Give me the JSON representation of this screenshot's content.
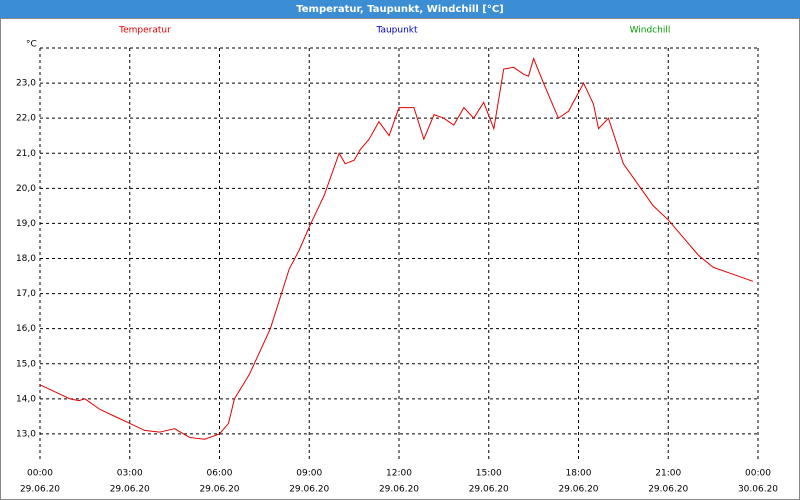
{
  "chart_data": {
    "type": "line",
    "title": "Temperatur, Taupunkt, Windchill [°C]",
    "y_label": "°C",
    "x": [
      0,
      0.5,
      1,
      1.3,
      1.5,
      2,
      2.5,
      3,
      3.5,
      4,
      4.5,
      5,
      5.5,
      6,
      6.3,
      6.5,
      7,
      7.7,
      8.33,
      8.67,
      9,
      9.5,
      10,
      10.2,
      10.5,
      10.7,
      11,
      11.33,
      11.67,
      12,
      12.5,
      12.83,
      13.17,
      13.5,
      13.83,
      14.17,
      14.5,
      14.83,
      15.17,
      15.5,
      15.83,
      16.17,
      16.33,
      16.5,
      16.83,
      17.33,
      17.67,
      18.17,
      18.5,
      18.67,
      19,
      19.5,
      20,
      20.5,
      21,
      21.5,
      22,
      22.5,
      23,
      23.5,
      23.83
    ],
    "series": [
      {
        "name": "Temperatur",
        "color": "#e00000",
        "values": [
          14.4,
          14.2,
          14.0,
          13.95,
          14.0,
          13.7,
          13.5,
          13.3,
          13.1,
          13.05,
          13.15,
          12.9,
          12.85,
          13.0,
          13.3,
          14.0,
          14.7,
          16.0,
          17.7,
          18.25,
          18.9,
          19.8,
          21.0,
          20.7,
          20.8,
          21.1,
          21.4,
          21.9,
          21.5,
          22.3,
          22.3,
          21.4,
          22.1,
          22.0,
          21.8,
          22.3,
          22.0,
          22.45,
          21.7,
          23.4,
          23.45,
          23.25,
          23.2,
          23.7,
          23.0,
          22.0,
          22.2,
          23.0,
          22.4,
          21.7,
          22.0,
          20.7,
          20.1,
          19.5,
          19.1,
          18.6,
          18.1,
          17.75,
          17.6,
          17.45,
          17.35
        ]
      }
    ],
    "legend": [
      {
        "name": "Temperatur",
        "color": "#e00000"
      },
      {
        "name": "Taupunkt",
        "color": "#0000c0"
      },
      {
        "name": "Windchill",
        "color": "#00a000"
      }
    ],
    "xlim": [
      0,
      24
    ],
    "ylim": [
      12.2,
      24.0
    ],
    "xticks": [
      {
        "value": 0,
        "label": "00:00",
        "date": "29.06.20"
      },
      {
        "value": 3,
        "label": "03:00",
        "date": "29.06.20"
      },
      {
        "value": 6,
        "label": "06:00",
        "date": "29.06.20"
      },
      {
        "value": 9,
        "label": "09:00",
        "date": "29.06.20"
      },
      {
        "value": 12,
        "label": "12:00",
        "date": "29.06.20"
      },
      {
        "value": 15,
        "label": "15:00",
        "date": "29.06.20"
      },
      {
        "value": 18,
        "label": "18:00",
        "date": "29.06.20"
      },
      {
        "value": 21,
        "label": "21:00",
        "date": "29.06.20"
      },
      {
        "value": 24,
        "label": "00:00",
        "date": "30.06.20"
      }
    ],
    "yticks": [
      {
        "value": 13,
        "label": "13,0"
      },
      {
        "value": 14,
        "label": "14,0"
      },
      {
        "value": 15,
        "label": "15,0"
      },
      {
        "value": 16,
        "label": "16,0"
      },
      {
        "value": 17,
        "label": "17,0"
      },
      {
        "value": 18,
        "label": "18,0"
      },
      {
        "value": 19,
        "label": "19,0"
      },
      {
        "value": 20,
        "label": "20,0"
      },
      {
        "value": 21,
        "label": "21,0"
      },
      {
        "value": 22,
        "label": "22,0"
      },
      {
        "value": 23,
        "label": "23,0"
      }
    ],
    "grid": true
  }
}
